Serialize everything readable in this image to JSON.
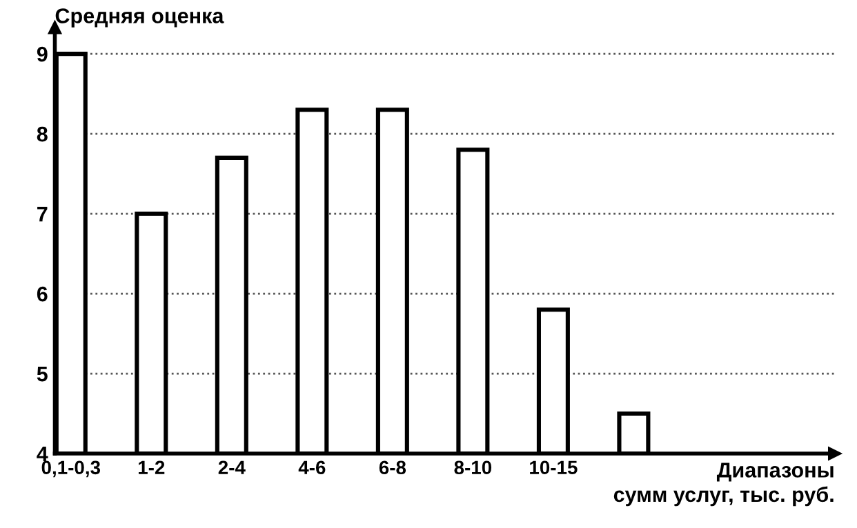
{
  "chart_data": {
    "type": "bar",
    "ylabel": "Средняя оценка",
    "xlabel": "Диапазоны\nсумм услуг, тыс. руб.",
    "categories": [
      "0,1-0,3",
      "1-2",
      "2-4",
      "4-6",
      "6-8",
      "8-10",
      "10-15",
      null
    ],
    "values": [
      9.0,
      7.0,
      7.7,
      8.3,
      8.3,
      7.8,
      5.8,
      4.5
    ],
    "color": "#ffffff",
    "ylim": [
      4,
      9.33
    ],
    "yticks": [
      4,
      5,
      6,
      7,
      8,
      9
    ],
    "grid": "y",
    "legend": false
  }
}
